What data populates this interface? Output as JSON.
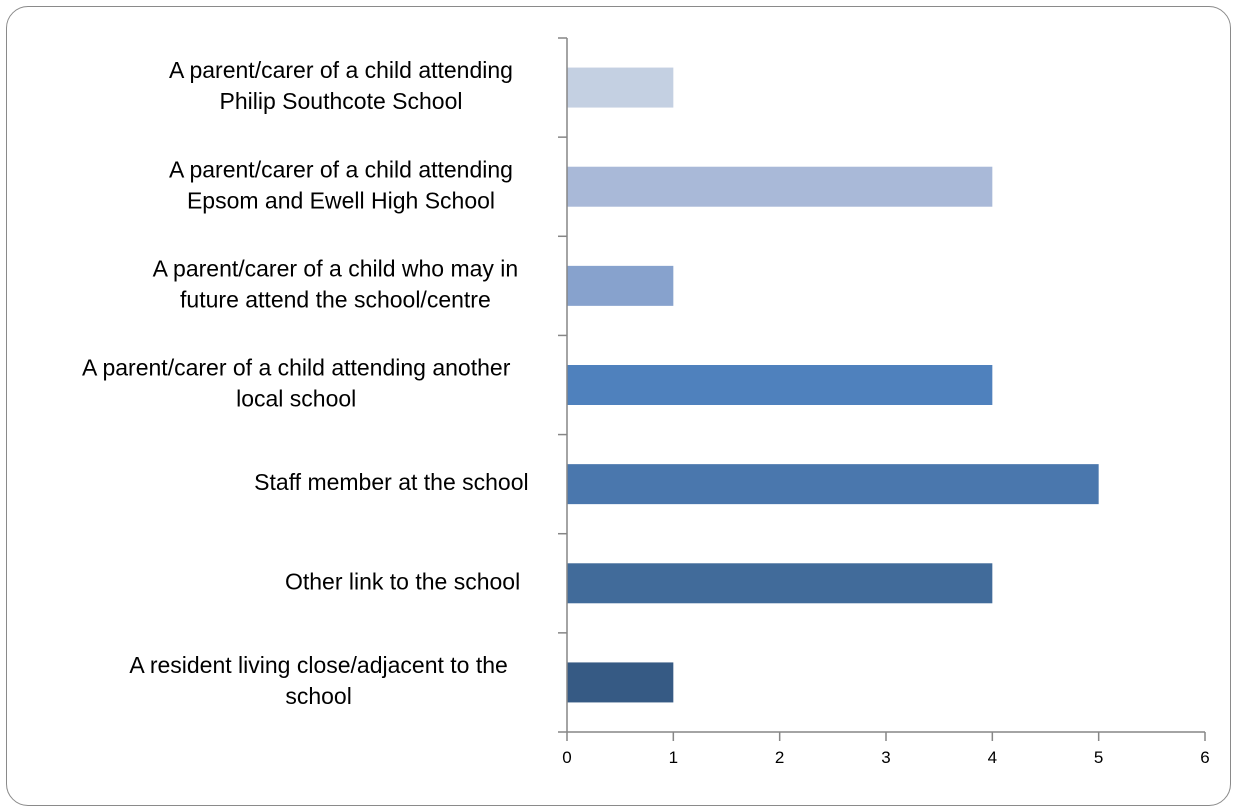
{
  "chart_data": {
    "type": "bar",
    "orientation": "horizontal",
    "categories": [
      [
        "A parent/carer of a child attending",
        "Philip Southcote School"
      ],
      [
        "A parent/carer of a child attending",
        "Epsom and Ewell High School"
      ],
      [
        "A parent/carer of a child who may in",
        "future attend the school/centre"
      ],
      [
        "A parent/carer of a child attending another",
        "local school"
      ],
      [
        "Staff member at the school"
      ],
      [
        "Other link to the school"
      ],
      [
        "A resident living close/adjacent to the",
        "school"
      ]
    ],
    "values": [
      1,
      4,
      1,
      4,
      5,
      4,
      1
    ],
    "bar_colors": [
      "#c4d0e2",
      "#a9b9d8",
      "#87a2cd",
      "#4f81bd",
      "#4a77ad",
      "#416b9a",
      "#365a84"
    ],
    "xlim": [
      0,
      6
    ],
    "xticks": [
      "0",
      "1",
      "2",
      "3",
      "4",
      "5",
      "6"
    ],
    "title": "",
    "xlabel": "",
    "ylabel": "",
    "grid": false,
    "legend": "none",
    "axis_color": "#868686"
  }
}
